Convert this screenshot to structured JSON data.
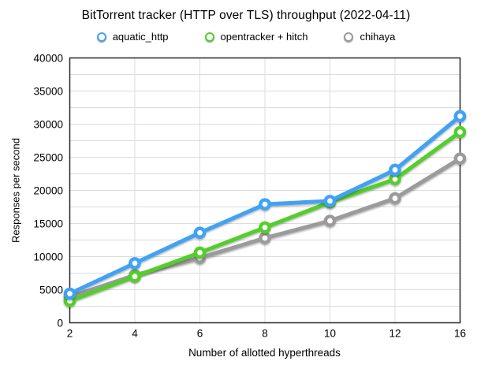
{
  "title": "BitTorrent tracker (HTTP over TLS) throughput (2022-04-11)",
  "colors": {
    "grid": "#DCDCDC",
    "frame": "#262626",
    "text": "#000000",
    "marker_center": "#ffffff"
  },
  "chart_data": {
    "type": "line",
    "title": "BitTorrent tracker (HTTP over TLS) throughput (2022-04-11)",
    "xlabel": "Number of allotted hyperthreads",
    "ylabel": "Responses per second",
    "categories": [
      2,
      4,
      6,
      8,
      10,
      12,
      16
    ],
    "series": [
      {
        "name": "aquatic_http",
        "color": "#3FA2F5",
        "values": [
          4400,
          9000,
          13600,
          17900,
          18400,
          23100,
          31200
        ]
      },
      {
        "name": "opentracker + hitch",
        "color": "#52CE2B",
        "values": [
          3300,
          7000,
          10600,
          14400,
          18200,
          21700,
          28800
        ]
      },
      {
        "name": "chihaya",
        "color": "#9B9B9B",
        "values": [
          3900,
          7200,
          9800,
          12800,
          15400,
          18800,
          24800
        ]
      }
    ],
    "ylim": [
      0,
      40000
    ],
    "yticks": [
      0,
      5000,
      10000,
      15000,
      20000,
      25000,
      30000,
      35000,
      40000
    ],
    "yminor_step": 2500,
    "grid": true,
    "legend_position": "top"
  }
}
